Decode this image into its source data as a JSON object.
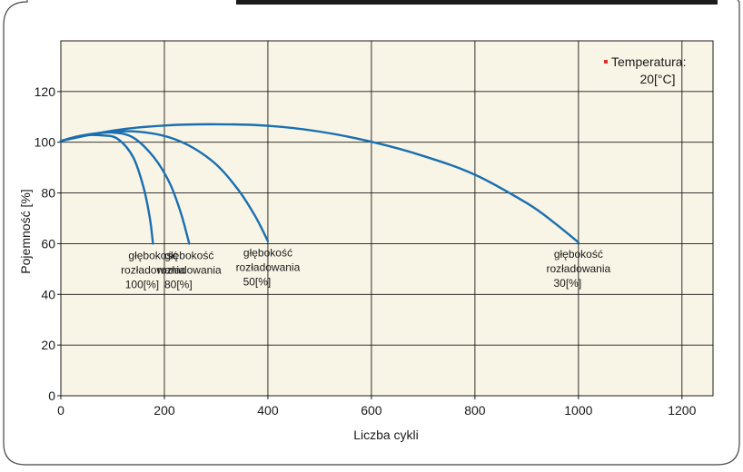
{
  "chart_data": {
    "type": "line",
    "title": "",
    "xlabel": "Liczba cykli",
    "ylabel": "Pojemność [%]",
    "xlim": [
      0,
      1260
    ],
    "ylim": [
      0,
      140
    ],
    "x_ticks": [
      0,
      200,
      400,
      600,
      800,
      1000,
      1200
    ],
    "y_ticks": [
      0,
      20,
      40,
      60,
      80,
      100,
      120
    ],
    "grid": true,
    "legend": {
      "position": "top-right",
      "lines": [
        "Temperatura:",
        "20[°C]"
      ],
      "marker_color": "#e0302a"
    },
    "colors": {
      "line": "#1a6fb0",
      "plot_background": "#f9f5e6",
      "grid": "#1a1a1a"
    },
    "series": [
      {
        "points": [
          [
            0,
            100.5
          ],
          [
            40,
            102.6
          ],
          [
            80,
            102.7
          ],
          [
            110,
            101.3
          ],
          [
            140,
            94
          ],
          [
            160,
            82
          ],
          [
            172,
            70
          ],
          [
            178,
            60
          ]
        ],
        "label": [
          "głębokość",
          "rozładowania",
          "100[%]"
        ]
      },
      {
        "points": [
          [
            0,
            100.5
          ],
          [
            50,
            103.0
          ],
          [
            100,
            103.8
          ],
          [
            140,
            101.8
          ],
          [
            180,
            94
          ],
          [
            210,
            84
          ],
          [
            232,
            72
          ],
          [
            248,
            60
          ]
        ],
        "label": [
          "głębokość",
          "rozładowania",
          "80[%]"
        ]
      },
      {
        "points": [
          [
            0,
            100.5
          ],
          [
            60,
            103.2
          ],
          [
            140,
            104.3
          ],
          [
            220,
            101.2
          ],
          [
            290,
            93
          ],
          [
            340,
            82
          ],
          [
            375,
            71
          ],
          [
            400,
            61
          ]
        ],
        "label": [
          "głębokość",
          "rozładowania",
          "50[%]"
        ]
      },
      {
        "points": [
          [
            0,
            100.5
          ],
          [
            100,
            104.6
          ],
          [
            200,
            106.6
          ],
          [
            300,
            107.1
          ],
          [
            400,
            106.5
          ],
          [
            500,
            104.2
          ],
          [
            600,
            100.2
          ],
          [
            700,
            94.6
          ],
          [
            800,
            87.2
          ],
          [
            900,
            76.0
          ],
          [
            950,
            68.8
          ],
          [
            1000,
            60.5
          ]
        ],
        "label": [
          "głębokość",
          "rozładowania",
          "30[%]"
        ]
      }
    ]
  }
}
